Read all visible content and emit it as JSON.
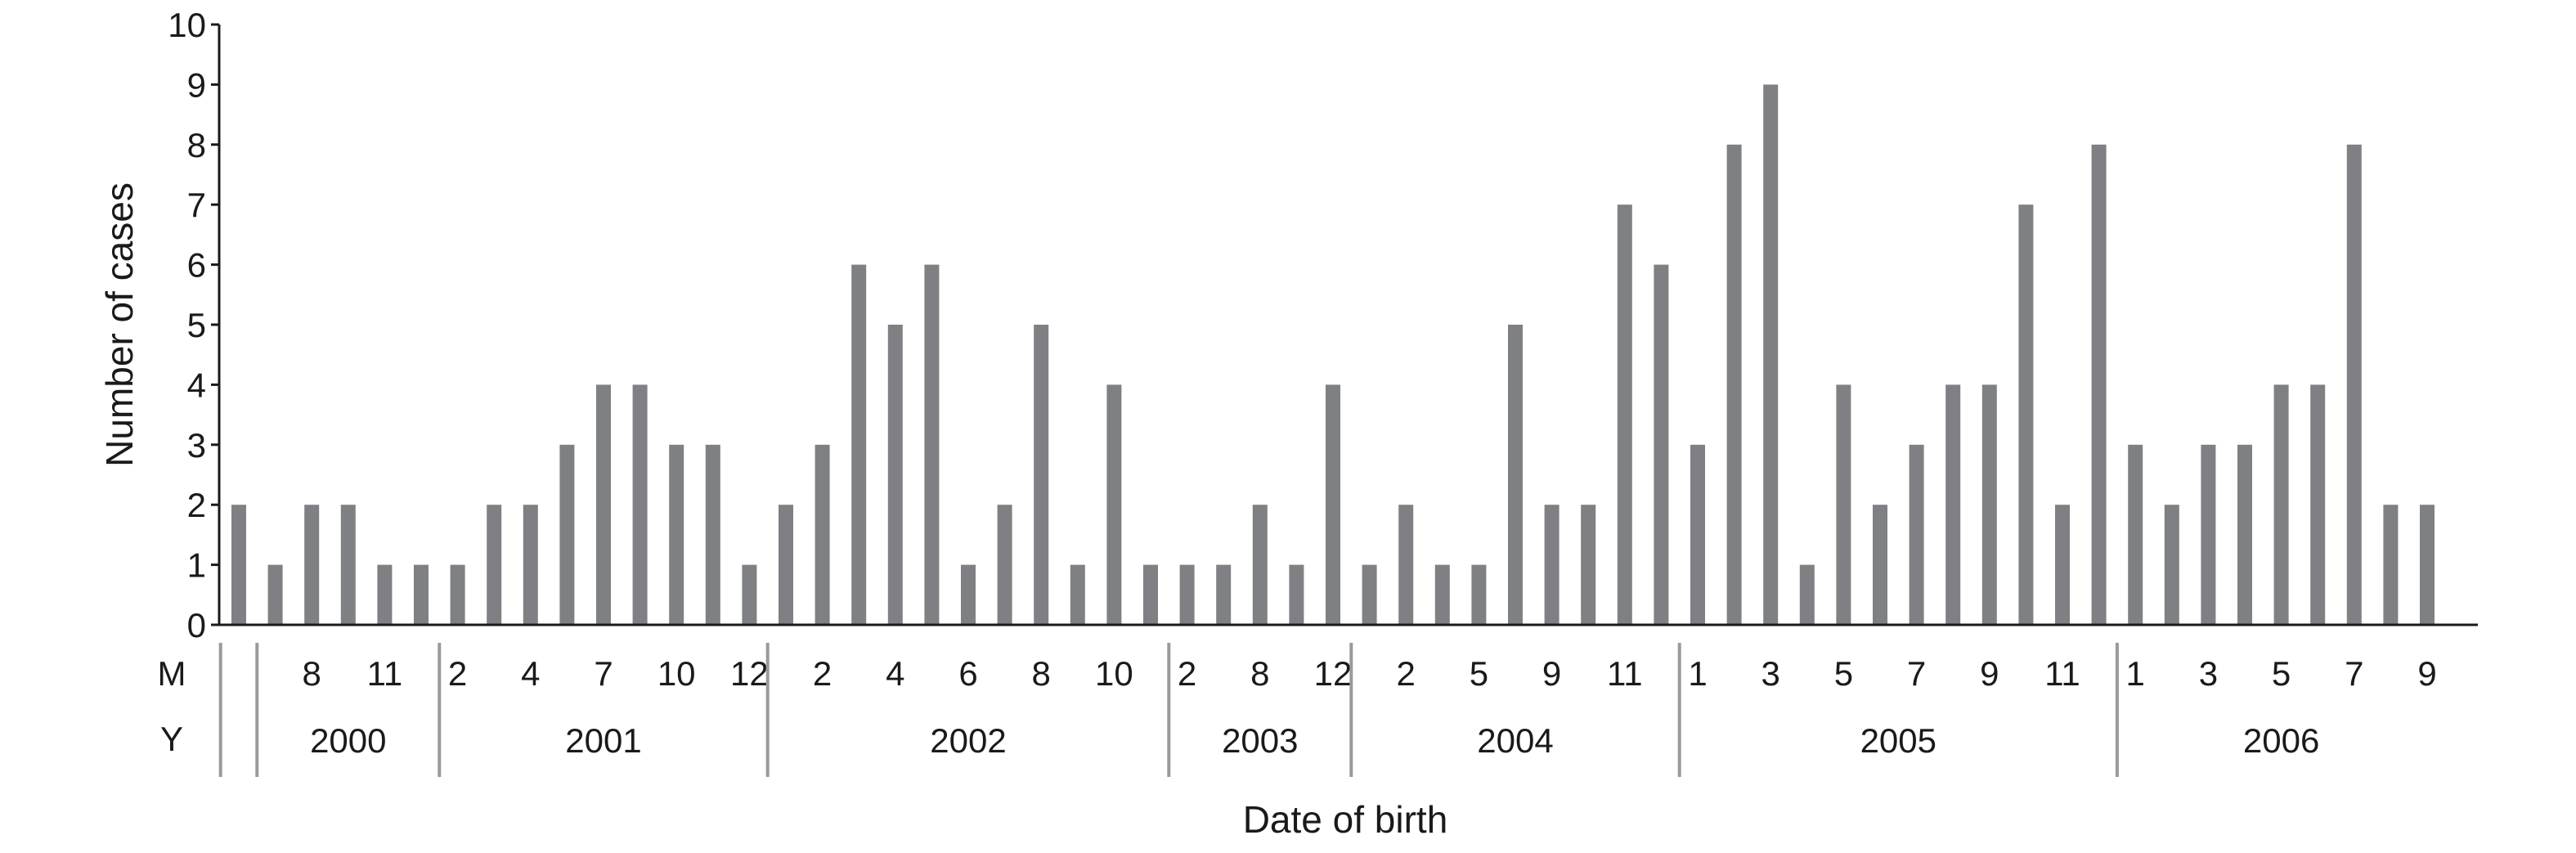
{
  "chart_data": {
    "type": "bar",
    "xlabel": "Date of birth",
    "ylabel": "Number of cases",
    "ylim": [
      0,
      10
    ],
    "yticks": [
      "0",
      "1",
      "2",
      "3",
      "4",
      "5",
      "6",
      "7",
      "8",
      "9",
      "10"
    ],
    "row_labels": {
      "month": "M",
      "year": "Y"
    },
    "grid": false,
    "legend": "none",
    "bar_color": "#7f8083",
    "values": [
      2,
      1,
      2,
      2,
      1,
      1,
      1,
      2,
      2,
      3,
      4,
      4,
      3,
      3,
      1,
      2,
      3,
      6,
      5,
      6,
      1,
      2,
      5,
      1,
      4,
      1,
      1,
      1,
      2,
      1,
      4,
      1,
      2,
      1,
      1,
      5,
      2,
      2,
      7,
      6,
      3,
      8,
      9,
      1,
      4,
      2,
      3,
      4,
      4,
      7,
      2,
      8,
      3,
      2,
      3,
      3,
      4,
      4,
      8,
      2,
      2
    ],
    "month_labels": [
      {
        "bar": 2,
        "text": "8"
      },
      {
        "bar": 4,
        "text": "11"
      },
      {
        "bar": 6,
        "text": "2"
      },
      {
        "bar": 8,
        "text": "4"
      },
      {
        "bar": 10,
        "text": "7"
      },
      {
        "bar": 12,
        "text": "10"
      },
      {
        "bar": 14,
        "text": "12"
      },
      {
        "bar": 16,
        "text": "2"
      },
      {
        "bar": 18,
        "text": "4"
      },
      {
        "bar": 20,
        "text": "6"
      },
      {
        "bar": 22,
        "text": "8"
      },
      {
        "bar": 24,
        "text": "10"
      },
      {
        "bar": 26,
        "text": "2"
      },
      {
        "bar": 28,
        "text": "8"
      },
      {
        "bar": 30,
        "text": "12"
      },
      {
        "bar": 32,
        "text": "2"
      },
      {
        "bar": 34,
        "text": "5"
      },
      {
        "bar": 36,
        "text": "9"
      },
      {
        "bar": 38,
        "text": "11"
      },
      {
        "bar": 40,
        "text": "1"
      },
      {
        "bar": 42,
        "text": "3"
      },
      {
        "bar": 44,
        "text": "5"
      },
      {
        "bar": 46,
        "text": "7"
      },
      {
        "bar": 48,
        "text": "9"
      },
      {
        "bar": 50,
        "text": "11"
      },
      {
        "bar": 52,
        "text": "1"
      },
      {
        "bar": 54,
        "text": "3"
      },
      {
        "bar": 56,
        "text": "5"
      },
      {
        "bar": 58,
        "text": "7"
      },
      {
        "bar": 60,
        "text": "9"
      }
    ],
    "years": [
      {
        "label": "",
        "start": 0,
        "end": 0
      },
      {
        "label": "2000",
        "start": 1,
        "end": 5
      },
      {
        "label": "2001",
        "start": 6,
        "end": 14
      },
      {
        "label": "2002",
        "start": 15,
        "end": 25
      },
      {
        "label": "2003",
        "start": 26,
        "end": 30
      },
      {
        "label": "2004",
        "start": 31,
        "end": 39
      },
      {
        "label": "2005",
        "start": 40,
        "end": 51
      },
      {
        "label": "2006",
        "start": 52,
        "end": 60
      }
    ]
  }
}
